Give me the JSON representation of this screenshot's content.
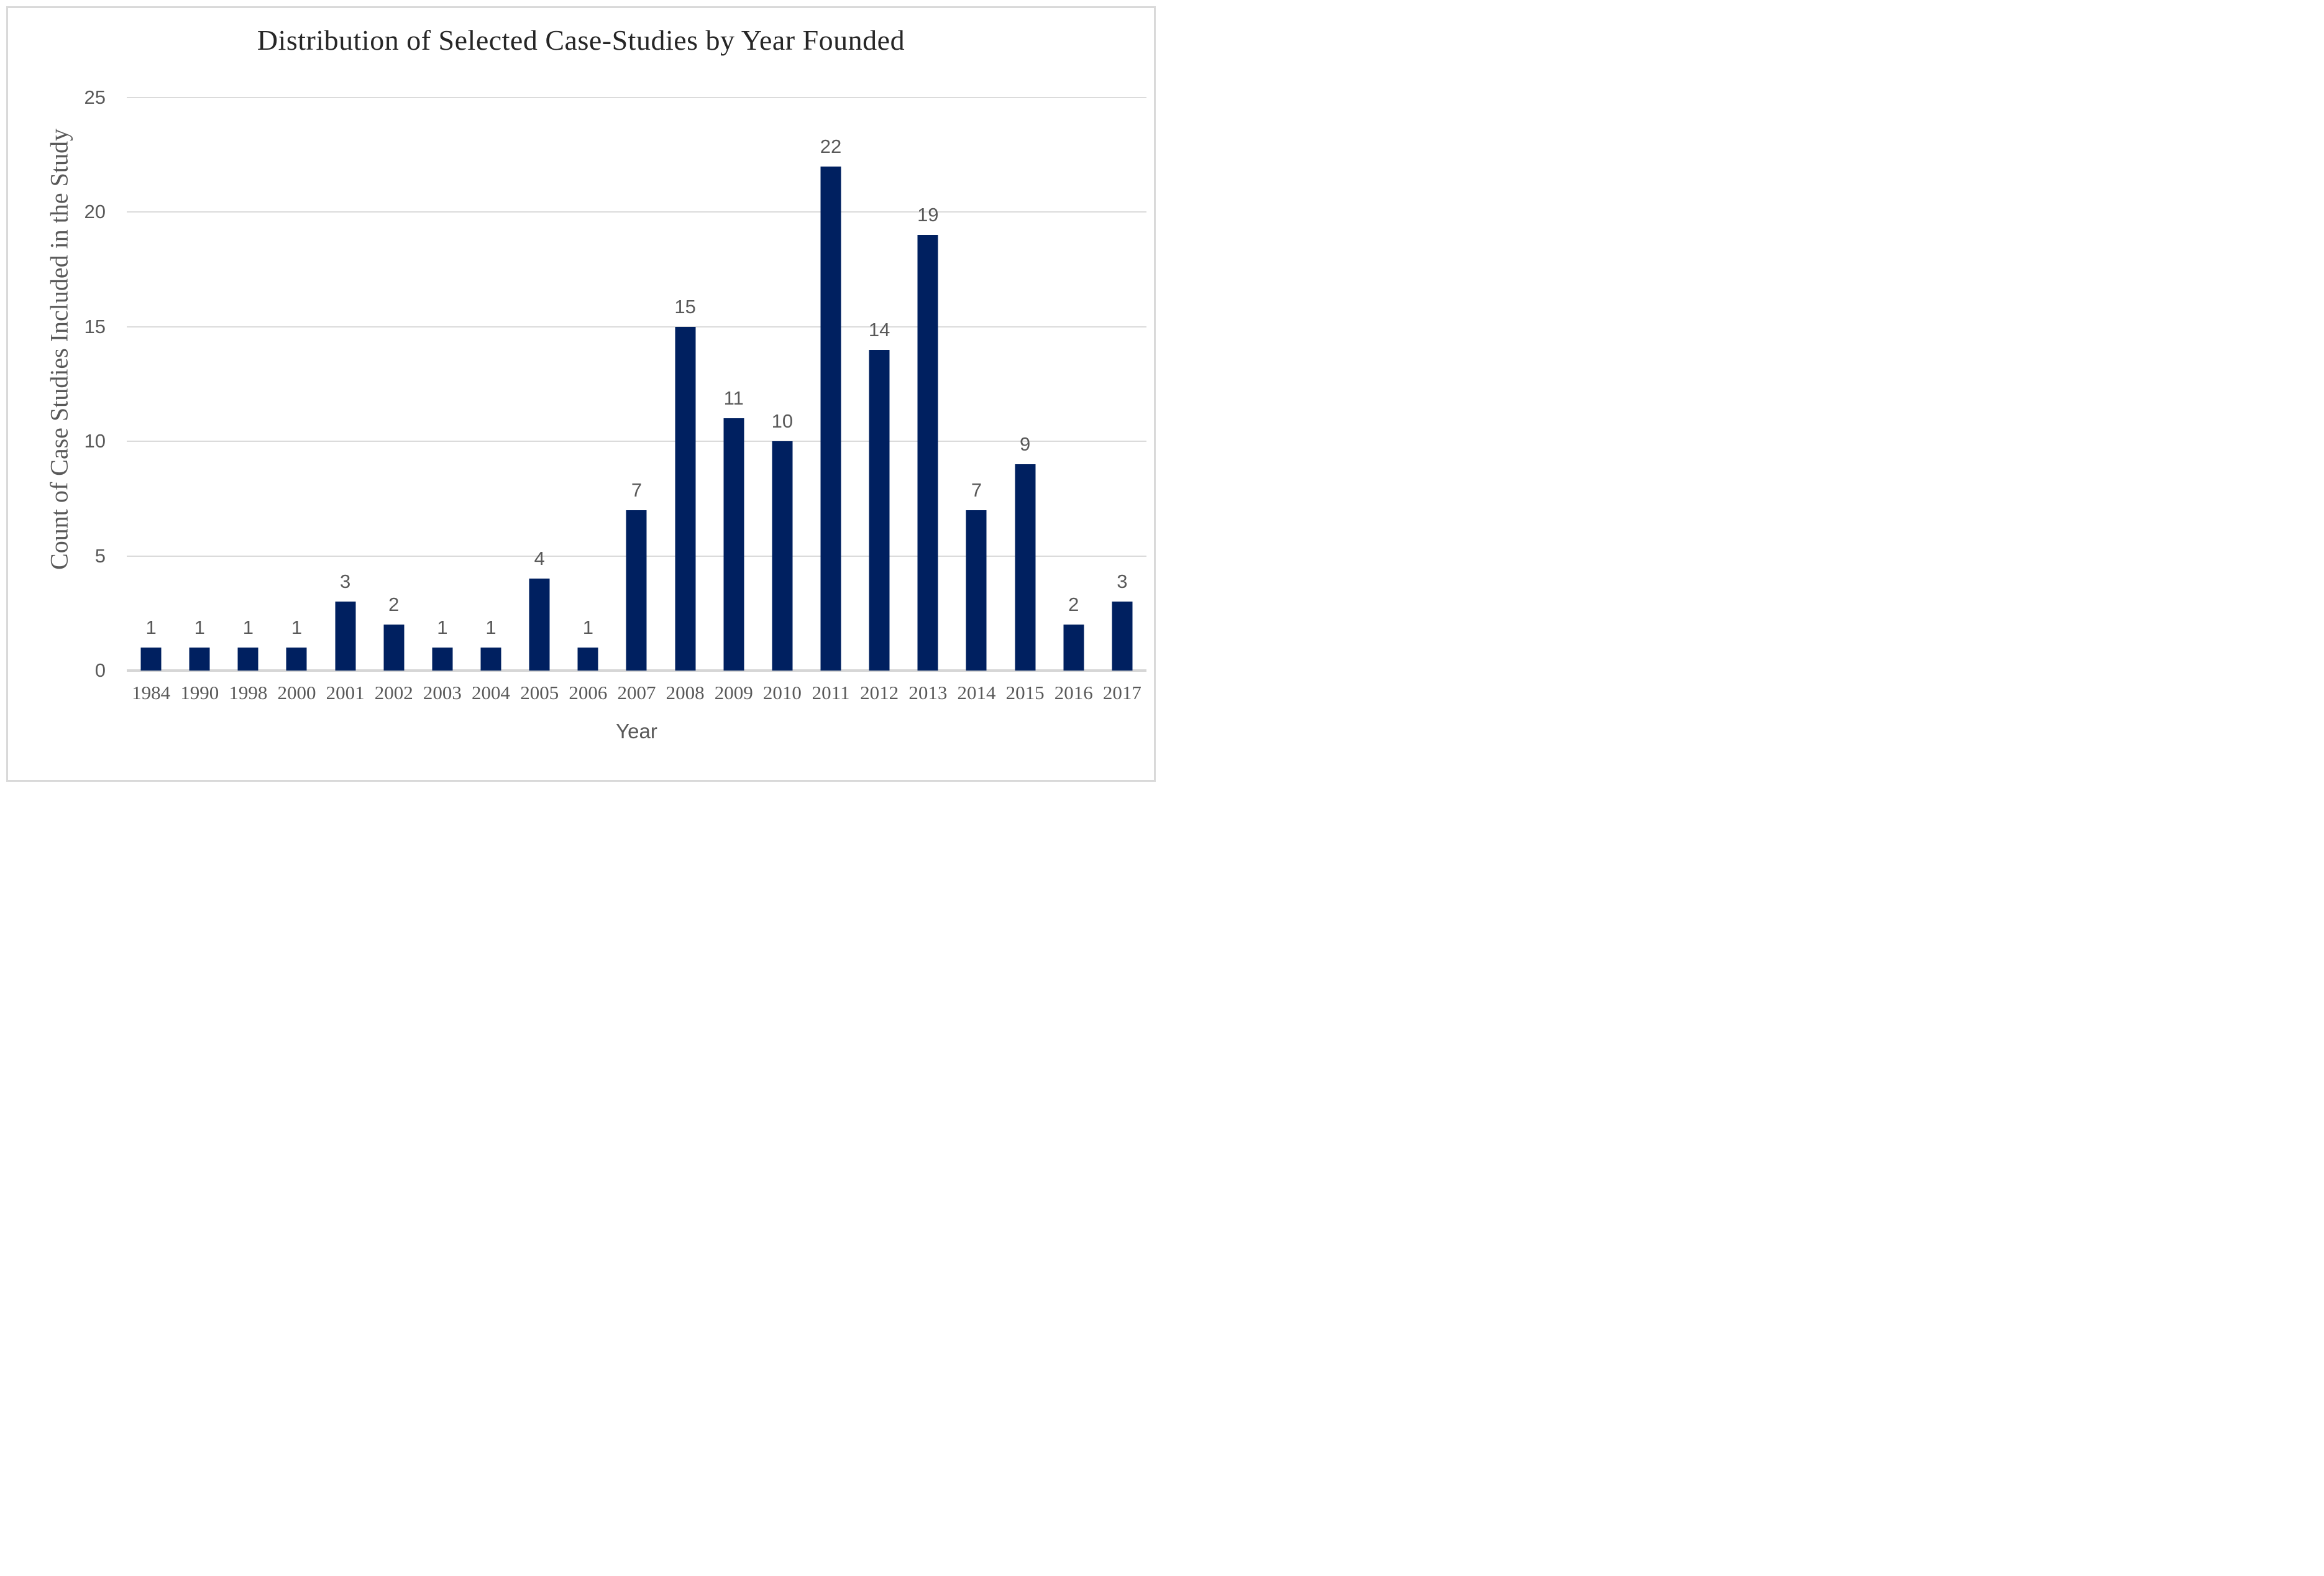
{
  "chart_data": {
    "type": "bar",
    "title": "Distribution of Selected Case-Studies by Year Founded",
    "xlabel": "Year",
    "ylabel": "Count of Case Studies Included in the Study",
    "categories": [
      "1984",
      "1990",
      "1998",
      "2000",
      "2001",
      "2002",
      "2003",
      "2004",
      "2005",
      "2006",
      "2007",
      "2008",
      "2009",
      "2010",
      "2011",
      "2012",
      "2013",
      "2014",
      "2015",
      "2016",
      "2017"
    ],
    "values": [
      1,
      1,
      1,
      1,
      3,
      2,
      1,
      1,
      4,
      1,
      7,
      15,
      11,
      10,
      22,
      14,
      19,
      7,
      9,
      2,
      3
    ],
    "data_labels": true,
    "ylim": [
      0,
      25
    ],
    "yticks": [
      0,
      5,
      10,
      15,
      20,
      25
    ],
    "grid": "horizontal-only",
    "legend": "none",
    "colors": {
      "bar": "#002060",
      "gridline": "#DBDBDB",
      "axis_line": "#D6D6D6",
      "tick_text": "#595959",
      "title_text": "#262626",
      "frame_border": "#D9D9D9"
    }
  }
}
